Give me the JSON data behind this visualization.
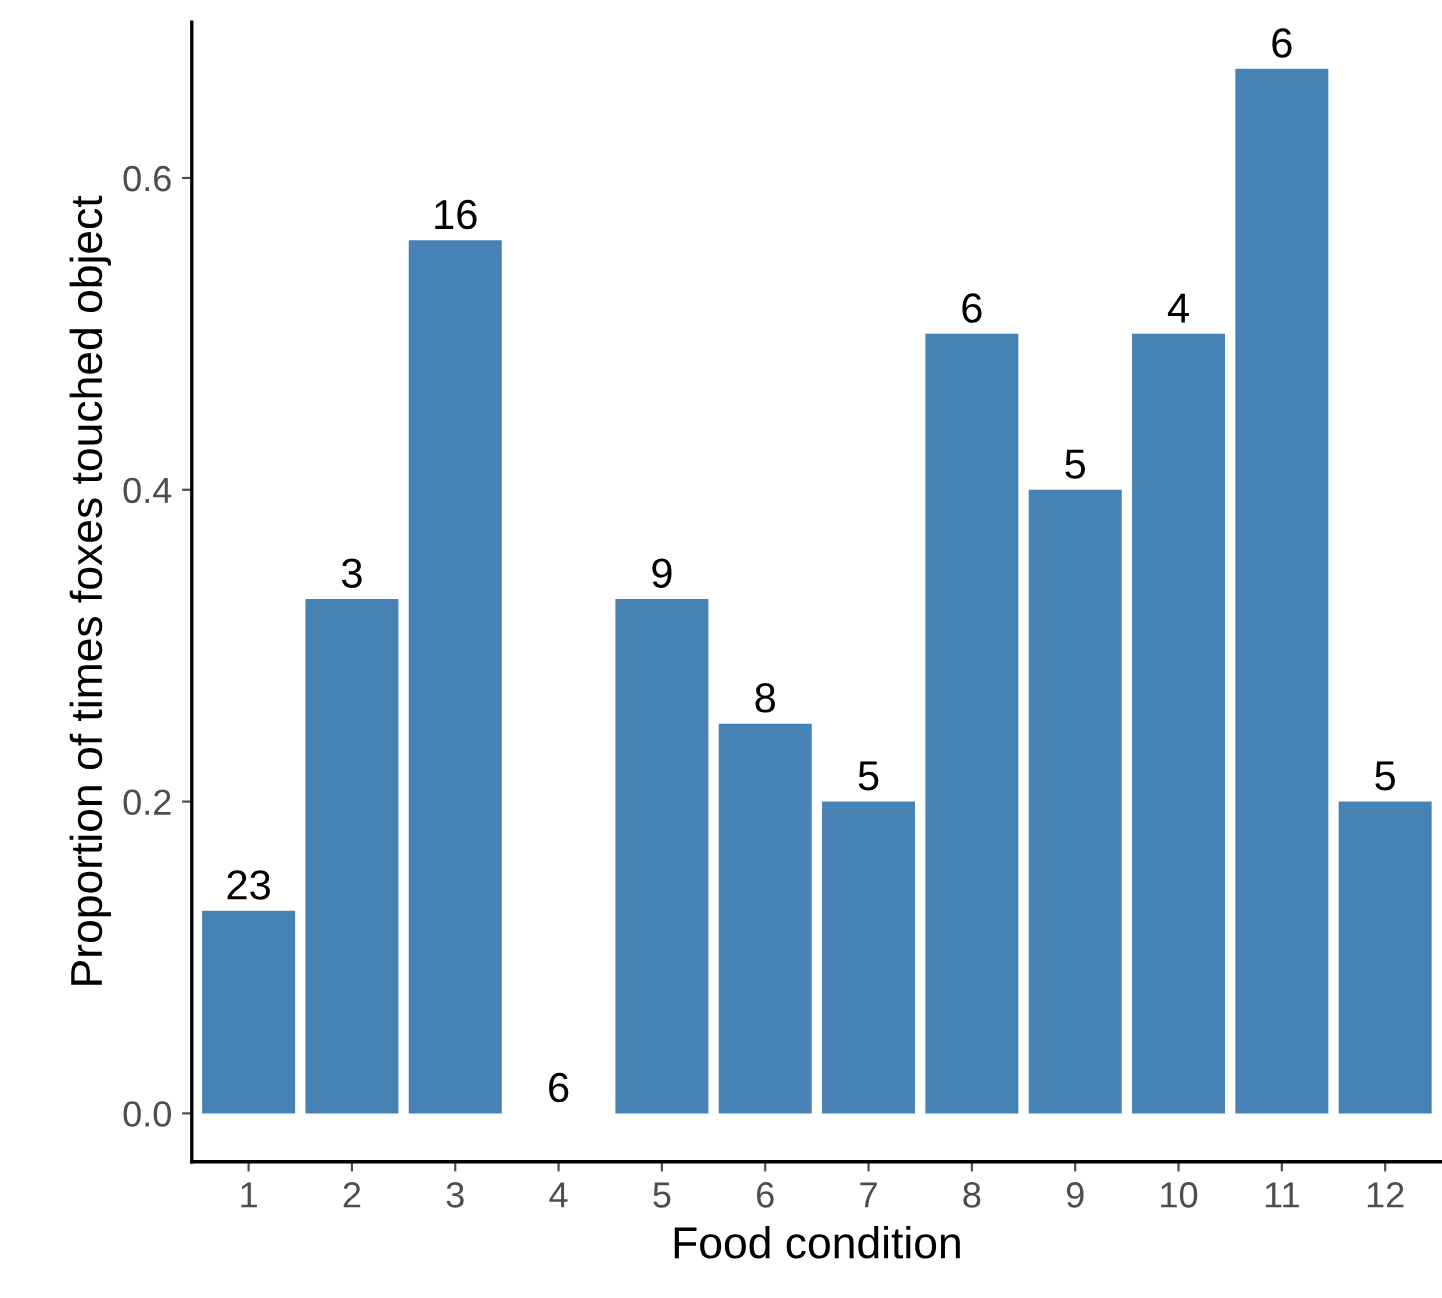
{
  "chart_data": {
    "type": "bar",
    "xlabel": "Food condition",
    "ylabel": "Proportion of times foxes touched object",
    "categories": [
      "1",
      "2",
      "3",
      "4",
      "5",
      "6",
      "7",
      "8",
      "9",
      "10",
      "11",
      "12"
    ],
    "values": [
      0.13,
      0.33,
      0.56,
      0,
      0.33,
      0.25,
      0.2,
      0.5,
      0.4,
      0.5,
      0.67,
      0.2
    ],
    "annotations": [
      {
        "text": "23",
        "x": "1",
        "y": 0.13
      },
      {
        "text": "3",
        "x": "2",
        "y": 0.33
      },
      {
        "text": "16",
        "x": "3",
        "y": 0.56
      },
      {
        "text": "6",
        "x": "4",
        "y": 0
      },
      {
        "text": "9",
        "x": "5",
        "y": 0.33
      },
      {
        "text": "8",
        "x": "6",
        "y": 0.25
      },
      {
        "text": "5",
        "x": "7",
        "y": 0.2
      },
      {
        "text": "6",
        "x": "8",
        "y": 0.5
      },
      {
        "text": "5",
        "x": "9",
        "y": 0.4
      },
      {
        "text": "4",
        "x": "10",
        "y": 0.5
      },
      {
        "text": "6",
        "x": "11",
        "y": 0.67
      },
      {
        "text": "5",
        "x": "12",
        "y": 0.2
      }
    ],
    "color": "#4682b4",
    "ylim": [
      -0.031,
      0.7
    ],
    "yticks": [
      {
        "value": 0,
        "label": "0.0"
      },
      {
        "value": 0.2,
        "label": "0.2"
      },
      {
        "value": 0.4,
        "label": "0.4"
      },
      {
        "value": 0.6,
        "label": "0.6"
      }
    ],
    "grid": false,
    "legend": false
  }
}
